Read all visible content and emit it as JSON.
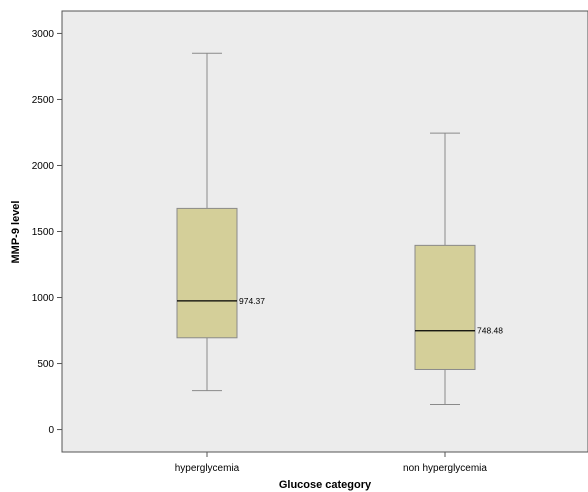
{
  "chart_data": {
    "type": "boxplot",
    "xlabel": "Glucose category",
    "ylabel": "MMP-9 level",
    "ylim": [
      -170,
      3170
    ],
    "yticks": [
      0,
      500,
      1000,
      1500,
      2000,
      2500,
      3000
    ],
    "categories": [
      "hyperglycemia",
      "non hyperglycemia"
    ],
    "boxes": [
      {
        "category": "hyperglycemia",
        "whisker_low": 295,
        "q1": 695,
        "median": 974.37,
        "q3": 1675,
        "whisker_high": 2850,
        "median_label": "974.37"
      },
      {
        "category": "non hyperglycemia",
        "whisker_low": 190,
        "q1": 455,
        "median": 748.48,
        "q3": 1395,
        "whisker_high": 2245,
        "median_label": "748.48"
      }
    ],
    "grid": false,
    "colors": {
      "plot_bg": "#ececec",
      "box_fill": "#d4cf99",
      "box_stroke": "#8a8a8a",
      "whisker": "#8a8a8a",
      "median": "#000000",
      "axis": "#555555"
    }
  }
}
